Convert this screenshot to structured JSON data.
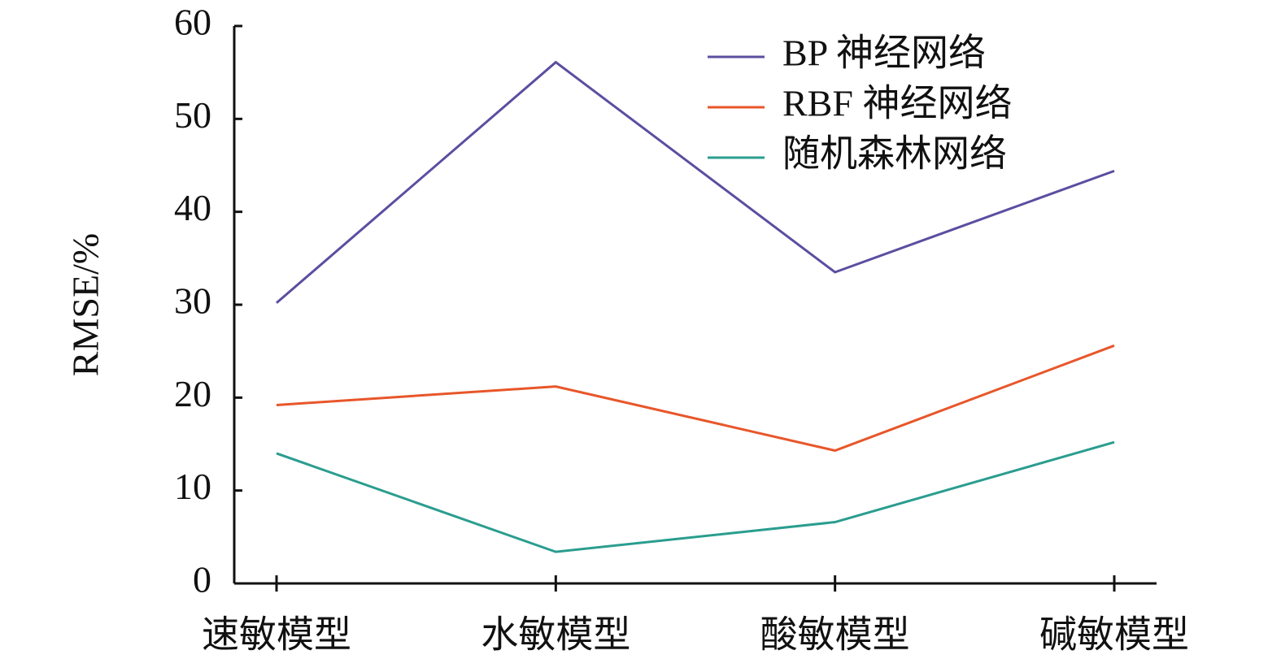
{
  "chart_data": {
    "type": "line",
    "y_label": "RMSE/%",
    "categories": [
      "速敏模型",
      "水敏模型",
      "酸敏模型",
      "碱敏模型"
    ],
    "series": [
      {
        "name": "BP 神经网络",
        "color": "#5b4ea0",
        "values": [
          30.2,
          56.1,
          33.5,
          44.4
        ]
      },
      {
        "name": "RBF 神经网络",
        "color": "#e8562a",
        "values": [
          19.2,
          21.2,
          14.3,
          25.6
        ]
      },
      {
        "name": "随机森林网络",
        "color": "#2a9d8f",
        "values": [
          14.0,
          3.4,
          6.6,
          15.2
        ]
      }
    ],
    "ylim": [
      0,
      60
    ],
    "yticks": [
      0,
      10,
      20,
      30,
      40,
      50,
      60
    ],
    "legend": "upper right"
  }
}
